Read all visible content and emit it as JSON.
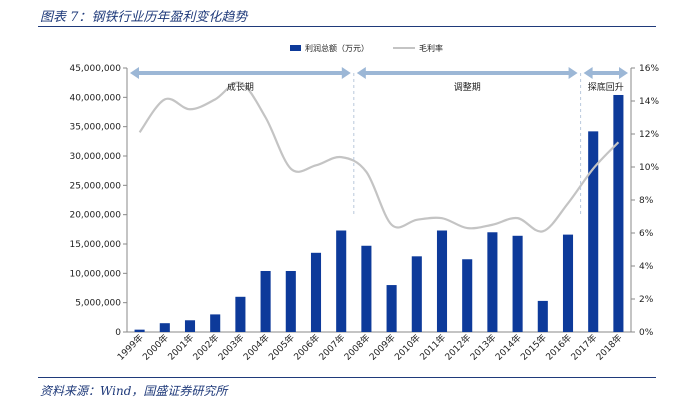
{
  "figure": {
    "title": "图表 7：钢铁行业历年盈利变化趋势",
    "source": "资料来源：Wind，国盛证券研究所"
  },
  "chart_data": {
    "type": "bar",
    "categories": [
      "1999年",
      "2000年",
      "2001年",
      "2002年",
      "2003年",
      "2004年",
      "2005年",
      "2006年",
      "2007年",
      "2008年",
      "2009年",
      "2010年",
      "2011年",
      "2012年",
      "2013年",
      "2014年",
      "2015年",
      "2016年",
      "2017年",
      "2018年"
    ],
    "series": [
      {
        "name": "利润总额（万元）",
        "type": "bar",
        "axis": "left",
        "color": "#0d3a9a",
        "values": [
          400000,
          1500000,
          2000000,
          3000000,
          6000000,
          10400000,
          10400000,
          13500000,
          17300000,
          14700000,
          8000000,
          12900000,
          17300000,
          12400000,
          17000000,
          16400000,
          5300000,
          16600000,
          34200000,
          40400000
        ]
      },
      {
        "name": "毛利率",
        "type": "line",
        "axis": "right",
        "color": "#c4c4c4",
        "values": [
          12.1,
          14.1,
          13.5,
          14.1,
          15.1,
          13.0,
          9.9,
          10.1,
          10.6,
          9.7,
          6.5,
          6.8,
          6.9,
          6.3,
          6.5,
          6.9,
          6.1,
          7.8,
          9.9,
          11.5
        ]
      }
    ],
    "y_left": {
      "min": 0,
      "max": 45000000,
      "ticks": [
        0,
        5000000,
        10000000,
        15000000,
        20000000,
        25000000,
        30000000,
        35000000,
        40000000,
        45000000
      ],
      "tick_labels": [
        "0",
        "5,000,000",
        "10,000,000",
        "15,000,000",
        "20,000,000",
        "25,000,000",
        "30,000,000",
        "35,000,000",
        "40,000,000",
        "45,000,000"
      ]
    },
    "y_right": {
      "min": 0,
      "max": 16,
      "ticks": [
        0,
        2,
        4,
        6,
        8,
        10,
        12,
        14,
        16
      ],
      "tick_labels": [
        "0%",
        "2%",
        "4%",
        "6%",
        "8%",
        "10%",
        "12%",
        "14%",
        "16%"
      ]
    },
    "phases": [
      {
        "label": "成长期",
        "start": "1999年",
        "end": "2007年"
      },
      {
        "label": "调整期",
        "start": "2008年",
        "end": "2016年"
      },
      {
        "label": "探底回升",
        "start": "2017年",
        "end": "2018年"
      }
    ],
    "legend_position": "top-center",
    "grid": false
  }
}
